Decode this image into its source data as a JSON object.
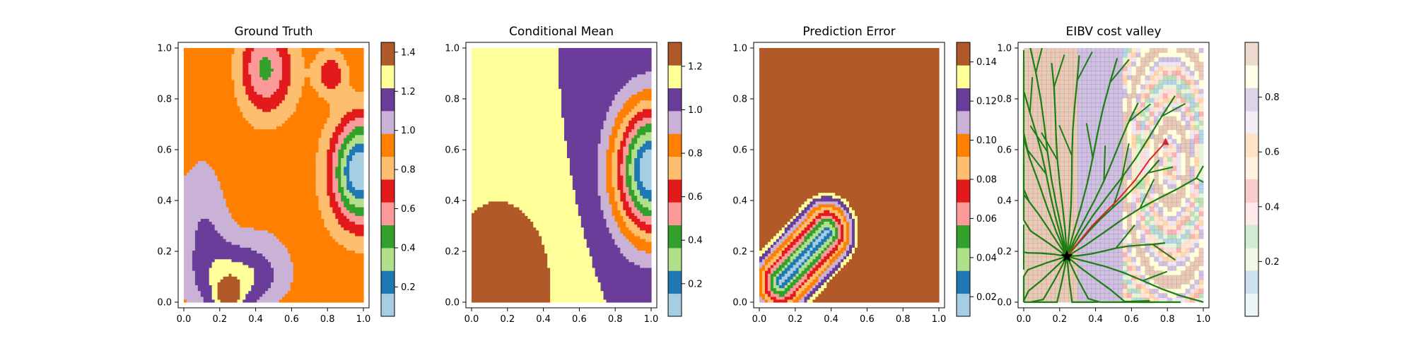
{
  "chart_data": [
    {
      "type": "heatmap",
      "title": "Ground Truth",
      "xlim": [
        0,
        1
      ],
      "ylim": [
        0,
        1
      ],
      "x_ticks": [
        "0.0",
        "0.2",
        "0.4",
        "0.6",
        "0.8",
        "1.0"
      ],
      "y_ticks": [
        "0.0",
        "0.2",
        "0.4",
        "0.6",
        "0.8",
        "1.0"
      ],
      "colormap": "Paired",
      "colorbar": {
        "min": 0.05,
        "max": 1.45,
        "ticks": [
          "0.2",
          "0.4",
          "0.6",
          "0.8",
          "1.0",
          "1.2",
          "1.4"
        ],
        "tick_values": [
          0.2,
          0.4,
          0.6,
          0.8,
          1.0,
          1.2,
          1.4
        ]
      },
      "grid": false
    },
    {
      "type": "heatmap",
      "title": "Conditional Mean",
      "xlim": [
        0,
        1
      ],
      "ylim": [
        0,
        1
      ],
      "x_ticks": [
        "0.0",
        "0.2",
        "0.4",
        "0.6",
        "0.8",
        "1.0"
      ],
      "y_ticks": [
        "0.0",
        "0.2",
        "0.4",
        "0.6",
        "0.8",
        "1.0"
      ],
      "colormap": "Paired",
      "colorbar": {
        "min": 0.05,
        "max": 1.31,
        "ticks": [
          "0.2",
          "0.4",
          "0.6",
          "0.8",
          "1.0",
          "1.2"
        ],
        "tick_values": [
          0.2,
          0.4,
          0.6,
          0.8,
          1.0,
          1.2
        ]
      },
      "grid": false
    },
    {
      "type": "heatmap",
      "title": "Prediction Error",
      "xlim": [
        0,
        1
      ],
      "ylim": [
        0,
        1
      ],
      "x_ticks": [
        "0.0",
        "0.2",
        "0.4",
        "0.6",
        "0.8",
        "1.0"
      ],
      "y_ticks": [
        "0.0",
        "0.2",
        "0.4",
        "0.6",
        "0.8",
        "1.0"
      ],
      "colormap": "Paired",
      "colorbar": {
        "min": 0.01,
        "max": 0.15,
        "ticks": [
          "0.02",
          "0.04",
          "0.06",
          "0.08",
          "0.10",
          "0.12",
          "0.14"
        ],
        "tick_values": [
          0.02,
          0.04,
          0.06,
          0.08,
          0.1,
          0.12,
          0.14
        ]
      },
      "grid": false
    },
    {
      "type": "scatter",
      "title": "EIBV cost valley",
      "xlim": [
        0,
        1
      ],
      "ylim": [
        0,
        1
      ],
      "x_ticks": [
        "0.0",
        "0.2",
        "0.4",
        "0.6",
        "0.8",
        "1.0"
      ],
      "y_ticks": [
        "0.0",
        "0.2",
        "0.4",
        "0.6",
        "0.8",
        "1.0"
      ],
      "colormap": "Paired",
      "colorbar": {
        "min": 0.0,
        "max": 1.0,
        "ticks": [
          "0.2",
          "0.4",
          "0.6",
          "0.8"
        ],
        "tick_values": [
          0.2,
          0.4,
          0.6,
          0.8
        ]
      },
      "start_point": [
        0.24,
        0.18
      ],
      "target_point": [
        0.79,
        0.63
      ],
      "planned_path": [
        [
          0.24,
          0.18
        ],
        [
          0.38,
          0.3
        ],
        [
          0.52,
          0.4
        ],
        [
          0.62,
          0.48
        ],
        [
          0.7,
          0.56
        ],
        [
          0.79,
          0.63
        ]
      ],
      "tree_color": "#1a7f10",
      "path_color": "#d62728",
      "grid": false
    }
  ]
}
